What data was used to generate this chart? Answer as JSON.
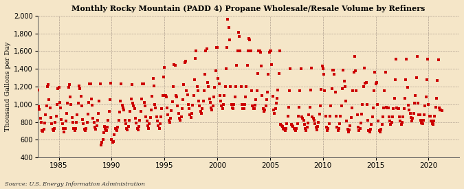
{
  "title": "Monthly Rocky Mountain (PADD 4) Propane Wholesale/Resale Volume by Refiners",
  "ylabel": "Thousand Gallons per Day",
  "source": "Source: U.S. Energy Information Administration",
  "background_color": "#f5e6c8",
  "plot_bg_color": "#f5e6c8",
  "marker_color": "#cc0000",
  "marker_size": 5,
  "ylim": [
    400,
    2000
  ],
  "yticks": [
    400,
    600,
    800,
    1000,
    1200,
    1400,
    1600,
    1800,
    2000
  ],
  "xlim_start": 1983.0,
  "xlim_end": 2022.9,
  "xticks": [
    1985,
    1990,
    1995,
    2000,
    2005,
    2010,
    2015,
    2020
  ],
  "grid_color": "#b0a090",
  "values": [
    1160,
    975,
    945,
    840,
    800,
    700,
    695,
    720,
    790,
    880,
    980,
    1200,
    1220,
    1050,
    960,
    850,
    780,
    720,
    700,
    730,
    800,
    870,
    1000,
    1180,
    1190,
    1020,
    960,
    830,
    780,
    730,
    690,
    730,
    810,
    900,
    1010,
    1190,
    1220,
    1080,
    1000,
    850,
    800,
    730,
    700,
    730,
    800,
    880,
    1010,
    1210,
    1180,
    1090,
    980,
    830,
    780,
    720,
    700,
    730,
    800,
    890,
    1020,
    1230,
    1230,
    1060,
    990,
    840,
    800,
    740,
    720,
    760,
    820,
    900,
    1040,
    1230,
    540,
    570,
    600,
    680,
    750,
    720,
    700,
    740,
    820,
    920,
    1050,
    1240,
    600,
    570,
    580,
    660,
    730,
    720,
    700,
    740,
    820,
    910,
    1040,
    1230,
    990,
    960,
    940,
    820,
    780,
    730,
    710,
    750,
    820,
    920,
    1060,
    1220,
    1010,
    980,
    950,
    840,
    790,
    730,
    710,
    750,
    820,
    920,
    1060,
    1230,
    1230,
    1020,
    980,
    860,
    810,
    760,
    730,
    780,
    850,
    940,
    1090,
    1290,
    1210,
    1000,
    960,
    860,
    810,
    760,
    730,
    780,
    860,
    950,
    1100,
    1310,
    1420,
    1100,
    1080,
    960,
    880,
    820,
    800,
    840,
    930,
    1030,
    1200,
    1450,
    1440,
    1100,
    1080,
    980,
    900,
    840,
    820,
    860,
    950,
    1050,
    1220,
    1470,
    1490,
    1150,
    1110,
    1000,
    950,
    880,
    850,
    900,
    990,
    1100,
    1280,
    1520,
    1600,
    1200,
    1150,
    1040,
    980,
    920,
    900,
    950,
    1040,
    1150,
    1340,
    1600,
    1630,
    1250,
    1200,
    1060,
    1020,
    960,
    940,
    980,
    1080,
    1190,
    1380,
    1640,
    1640,
    1290,
    1230,
    1100,
    1040,
    980,
    950,
    1000,
    1100,
    1200,
    1400,
    1640,
    1960,
    1870,
    1730,
    1200,
    1000,
    960,
    950,
    1000,
    1080,
    1200,
    1440,
    1600,
    1810,
    1770,
    1600,
    1200,
    1000,
    950,
    950,
    1000,
    1080,
    1200,
    1440,
    1600,
    1740,
    1730,
    1600,
    1150,
    980,
    950,
    950,
    990,
    1050,
    1150,
    1350,
    1600,
    1600,
    1590,
    1430,
    1100,
    950,
    920,
    940,
    980,
    1050,
    1140,
    1340,
    1590,
    1600,
    1600,
    1450,
    1090,
    940,
    900,
    950,
    1010,
    1070,
    1160,
    1350,
    1600,
    770,
    760,
    750,
    730,
    720,
    700,
    730,
    780,
    870,
    970,
    1150,
    1400,
    770,
    760,
    750,
    730,
    720,
    700,
    730,
    780,
    870,
    970,
    1150,
    1400,
    860,
    840,
    820,
    770,
    730,
    700,
    740,
    790,
    880,
    970,
    1160,
    1410,
    860,
    840,
    820,
    780,
    740,
    710,
    750,
    800,
    890,
    980,
    1170,
    1430,
    1400,
    1340,
    1150,
    870,
    740,
    700,
    730,
    780,
    870,
    980,
    1180,
    1390,
    1390,
    1340,
    1140,
    870,
    740,
    700,
    730,
    780,
    870,
    980,
    1180,
    1390,
    1260,
    1200,
    1040,
    810,
    720,
    690,
    710,
    760,
    850,
    960,
    1150,
    1360,
    1540,
    1380,
    1150,
    880,
    740,
    700,
    730,
    790,
    890,
    1000,
    1200,
    1410,
    1240,
    1250,
    1000,
    820,
    700,
    690,
    720,
    770,
    860,
    960,
    1150,
    1360,
    1230,
    1250,
    1000,
    810,
    700,
    690,
    720,
    770,
    860,
    960,
    1150,
    1360,
    970,
    960,
    960,
    860,
    810,
    770,
    800,
    860,
    950,
    1070,
    1280,
    1510,
    960,
    950,
    950,
    860,
    810,
    770,
    800,
    860,
    950,
    1070,
    1280,
    1510,
    1190,
    990,
    940,
    900,
    850,
    810,
    840,
    900,
    1010,
    1100,
    1300,
    1540,
    1010,
    880,
    880,
    820,
    790,
    780,
    820,
    880,
    980,
    1080,
    1280,
    1510,
    1000,
    870,
    870,
    810,
    780,
    770,
    810,
    870,
    970,
    1070,
    1270,
    1500,
    960,
    940,
    940,
    930
  ],
  "start_year": 1983,
  "start_month": 1
}
